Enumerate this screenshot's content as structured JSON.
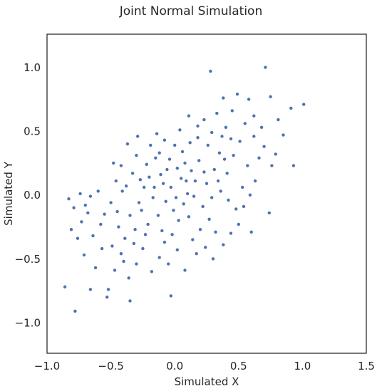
{
  "chart_data": {
    "type": "scatter",
    "title": "Joint Normal Simulation",
    "xlabel": "Simulated X",
    "ylabel": "Simulated Y",
    "xlim": [
      -1.0,
      1.5
    ],
    "ylim": [
      -1.25,
      1.25
    ],
    "xticks": [
      "−1.0",
      "−0.5",
      "0.0",
      "0.5",
      "1.0",
      "1.5"
    ],
    "yticks": [
      "−1.0",
      "−0.5",
      "0.0",
      "0.5",
      "1.0"
    ],
    "xtick_values": [
      -1.0,
      -0.5,
      0.0,
      0.5,
      1.0,
      1.5
    ],
    "ytick_values": [
      -1.0,
      -0.5,
      0.0,
      0.5,
      1.0
    ],
    "grid": false,
    "point_color": "#4c72b0",
    "points": [
      [
        0.28,
        0.96
      ],
      [
        0.71,
        0.99
      ],
      [
        1.01,
        0.7
      ],
      [
        0.91,
        0.67
      ],
      [
        0.75,
        0.76
      ],
      [
        0.49,
        0.78
      ],
      [
        0.38,
        0.75
      ],
      [
        0.45,
        0.65
      ],
      [
        0.58,
        0.74
      ],
      [
        0.62,
        0.61
      ],
      [
        0.81,
        0.58
      ],
      [
        0.85,
        0.46
      ],
      [
        0.79,
        0.31
      ],
      [
        0.93,
        0.22
      ],
      [
        0.76,
        0.22
      ],
      [
        0.7,
        0.37
      ],
      [
        0.62,
        0.45
      ],
      [
        0.57,
        0.22
      ],
      [
        0.63,
        0.1
      ],
      [
        0.59,
        -0.01
      ],
      [
        0.74,
        -0.15
      ],
      [
        0.6,
        -0.3
      ],
      [
        0.5,
        -0.24
      ],
      [
        0.48,
        -0.12
      ],
      [
        0.53,
        0.05
      ],
      [
        0.41,
        0.16
      ],
      [
        0.35,
        0.32
      ],
      [
        0.29,
        0.48
      ],
      [
        0.23,
        0.58
      ],
      [
        0.18,
        0.53
      ],
      [
        0.11,
        0.61
      ],
      [
        0.12,
        0.4
      ],
      [
        0.06,
        0.33
      ],
      [
        0.02,
        0.2
      ],
      [
        0.09,
        0.1
      ],
      [
        0.15,
        -0.02
      ],
      [
        0.22,
        -0.1
      ],
      [
        0.27,
        -0.2
      ],
      [
        0.32,
        -0.3
      ],
      [
        0.38,
        -0.4
      ],
      [
        0.3,
        -0.51
      ],
      [
        0.17,
        -0.47
      ],
      [
        0.08,
        -0.6
      ],
      [
        0.02,
        -0.44
      ],
      [
        -0.05,
        -0.55
      ],
      [
        -0.08,
        -0.38
      ],
      [
        -0.12,
        -0.5
      ],
      [
        -0.18,
        -0.61
      ],
      [
        -0.25,
        -0.43
      ],
      [
        -0.3,
        -0.55
      ],
      [
        -0.36,
        -0.66
      ],
      [
        -0.42,
        -0.47
      ],
      [
        -0.47,
        -0.6
      ],
      [
        -0.52,
        -0.75
      ],
      [
        -0.57,
        -0.43
      ],
      [
        -0.62,
        -0.58
      ],
      [
        -0.66,
        -0.75
      ],
      [
        -0.71,
        -0.48
      ],
      [
        -0.76,
        -0.35
      ],
      [
        -0.81,
        -0.28
      ],
      [
        -0.86,
        -0.73
      ],
      [
        -0.78,
        -0.92
      ],
      [
        -0.53,
        -0.81
      ],
      [
        -0.35,
        -0.84
      ],
      [
        -0.03,
        -0.8
      ],
      [
        -0.83,
        -0.04
      ],
      [
        -0.79,
        -0.11
      ],
      [
        -0.7,
        -0.09
      ],
      [
        -0.66,
        -0.02
      ],
      [
        -0.6,
        0.02
      ],
      [
        -0.55,
        -0.16
      ],
      [
        -0.5,
        -0.07
      ],
      [
        -0.46,
        0.1
      ],
      [
        -0.42,
        0.22
      ],
      [
        -0.38,
        0.06
      ],
      [
        -0.33,
        0.16
      ],
      [
        -0.3,
        0.3
      ],
      [
        -0.27,
        0.11
      ],
      [
        -0.22,
        0.23
      ],
      [
        -0.19,
        0.38
      ],
      [
        -0.15,
        0.28
      ],
      [
        -0.11,
        0.15
      ],
      [
        -0.08,
        0.42
      ],
      [
        -0.04,
        0.27
      ],
      [
        0.0,
        0.38
      ],
      [
        0.04,
        0.5
      ],
      [
        -0.03,
        0.05
      ],
      [
        -0.07,
        -0.06
      ],
      [
        -0.13,
        -0.17
      ],
      [
        -0.17,
        -0.03
      ],
      [
        -0.21,
        -0.24
      ],
      [
        -0.26,
        -0.13
      ],
      [
        -0.31,
        -0.28
      ],
      [
        -0.35,
        -0.17
      ],
      [
        -0.39,
        -0.35
      ],
      [
        -0.44,
        -0.26
      ],
      [
        -0.49,
        -0.41
      ],
      [
        -0.41,
        0.02
      ],
      [
        -0.24,
        0.05
      ],
      [
        -0.1,
        -0.29
      ],
      [
        0.03,
        -0.21
      ],
      [
        0.07,
        -0.08
      ],
      [
        0.13,
        0.18
      ],
      [
        0.19,
        0.26
      ],
      [
        0.25,
        0.08
      ],
      [
        0.31,
        0.19
      ],
      [
        0.36,
        0.02
      ],
      [
        0.42,
        -0.05
      ],
      [
        0.46,
        0.3
      ],
      [
        0.51,
        0.41
      ],
      [
        0.4,
        0.52
      ],
      [
        0.33,
        0.63
      ],
      [
        0.26,
        0.38
      ],
      [
        0.2,
        -0.28
      ],
      [
        0.14,
        -0.36
      ],
      [
        0.1,
        0.0
      ],
      [
        0.05,
        0.12
      ],
      [
        -0.01,
        -0.13
      ],
      [
        -0.06,
        0.19
      ],
      [
        -0.14,
        0.47
      ],
      [
        -0.2,
        0.13
      ],
      [
        -0.28,
        -0.07
      ],
      [
        -0.32,
        -0.39
      ],
      [
        -0.37,
        0.39
      ],
      [
        -0.45,
        -0.14
      ],
      [
        -0.58,
        -0.24
      ],
      [
        -0.64,
        -0.33
      ],
      [
        -0.68,
        -0.15
      ],
      [
        -0.74,
        0.0
      ],
      [
        -0.73,
        -0.22
      ],
      [
        -0.16,
        0.05
      ],
      [
        -0.09,
        0.08
      ],
      [
        0.01,
        -0.03
      ],
      [
        0.08,
        0.24
      ],
      [
        0.16,
        0.1
      ],
      [
        0.23,
        0.17
      ],
      [
        0.29,
        -0.03
      ],
      [
        0.34,
        0.1
      ],
      [
        0.39,
        0.27
      ],
      [
        0.44,
        0.43
      ],
      [
        0.55,
        0.55
      ],
      [
        0.66,
        0.28
      ],
      [
        0.68,
        0.52
      ],
      [
        0.54,
        -0.1
      ],
      [
        0.44,
        -0.31
      ],
      [
        0.24,
        -0.42
      ],
      [
        0.11,
        -0.18
      ],
      [
        -0.02,
        -0.32
      ],
      [
        -0.23,
        -0.32
      ],
      [
        -0.4,
        -0.53
      ],
      [
        -0.48,
        0.24
      ],
      [
        -0.29,
        0.45
      ],
      [
        -0.12,
        0.32
      ],
      [
        0.18,
        0.44
      ],
      [
        0.37,
        0.45
      ]
    ]
  }
}
